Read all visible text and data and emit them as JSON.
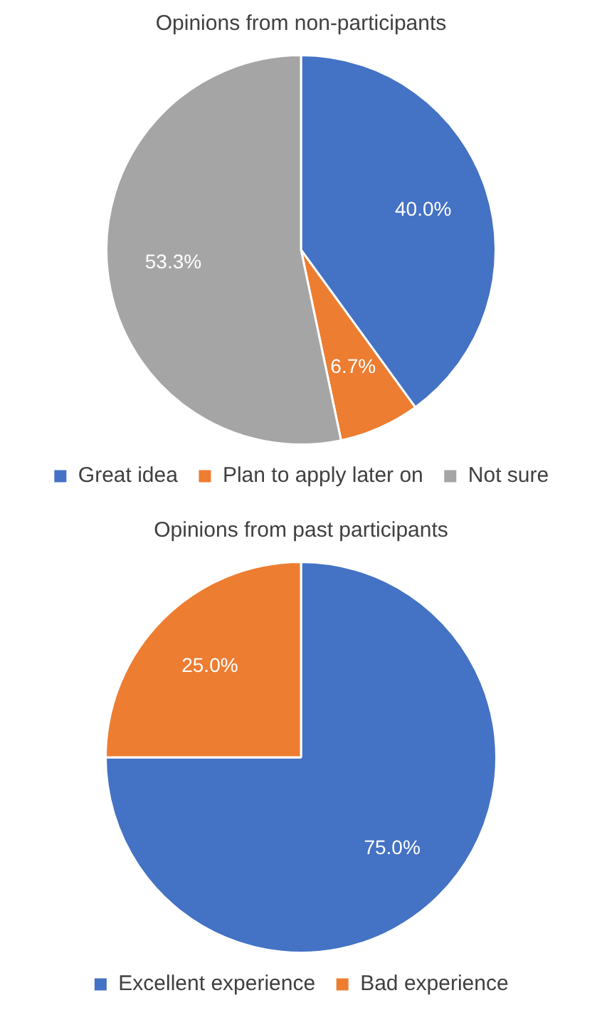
{
  "chart_data": [
    {
      "type": "pie",
      "title": "Opinions from non-participants",
      "categories": [
        "Great idea",
        "Plan to apply later on",
        "Not sure"
      ],
      "values": [
        40,
        6.7,
        53.3
      ],
      "colors": [
        "#4472c4",
        "#ed7d31",
        "#a5a5a5"
      ],
      "value_labels": [
        "40.0%",
        "6.7%",
        "53.3%"
      ],
      "legend": "bottom"
    },
    {
      "type": "pie",
      "title": "Opinions from past participants",
      "categories": [
        "Excellent experience",
        "Bad experience"
      ],
      "values": [
        75,
        25
      ],
      "colors": [
        "#4472c4",
        "#ed7d31"
      ],
      "value_labels": [
        "75.0%",
        "25.0%"
      ],
      "legend": "bottom"
    }
  ]
}
